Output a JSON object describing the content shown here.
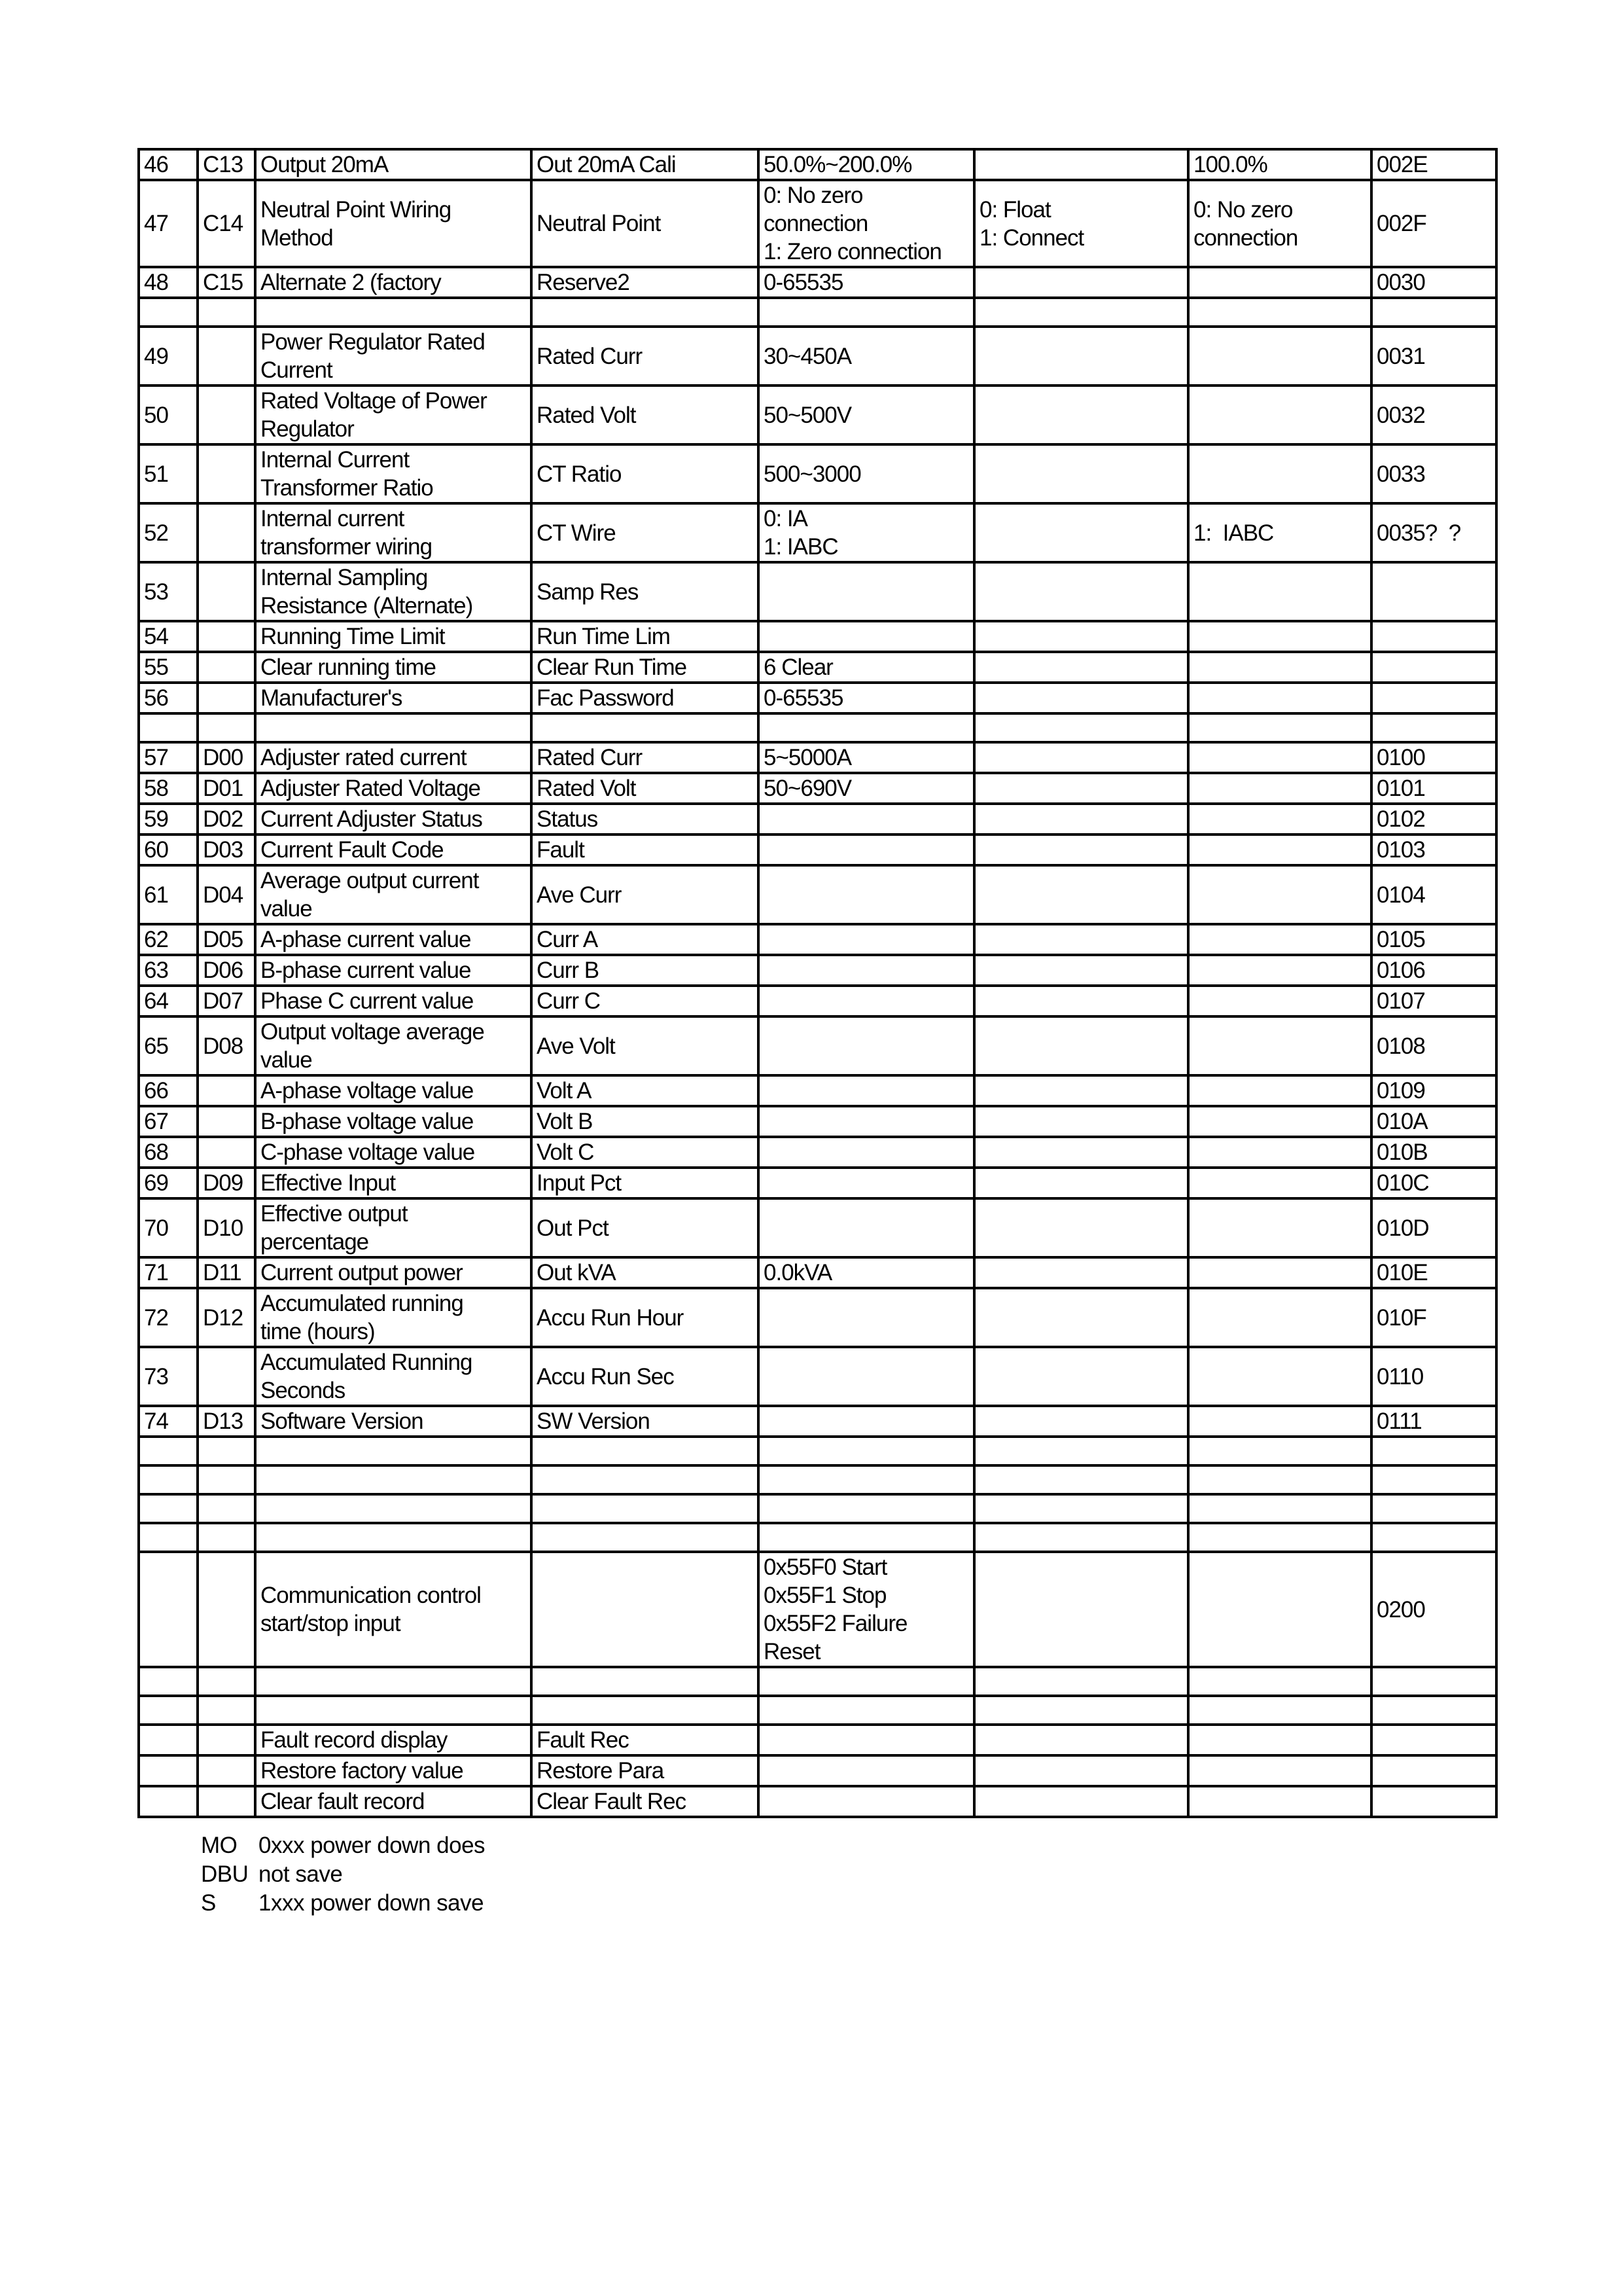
{
  "rows": [
    [
      "46",
      "C13",
      "Output 20mA",
      "Out 20mA Cali",
      "50.0%~200.0%",
      "",
      "100.0%",
      "002E"
    ],
    [
      "47",
      "C14",
      "Neutral Point Wiring\nMethod",
      "Neutral Point",
      "0: No zero\nconnection\n1: Zero connection",
      "0: Float\n1: Connect",
      "0: No zero\nconnection",
      "002F"
    ],
    [
      "48",
      "C15",
      "Alternate 2 (factory",
      "Reserve2",
      "0-65535",
      "",
      "",
      "0030"
    ],
    [
      "",
      "",
      "",
      "",
      "",
      "",
      "",
      ""
    ],
    [
      "49",
      "",
      "Power Regulator Rated\nCurrent",
      "Rated Curr",
      "30~450A",
      "",
      "",
      "0031"
    ],
    [
      "50",
      "",
      "Rated Voltage of Power\nRegulator",
      "Rated Volt",
      "50~500V",
      "",
      "",
      "0032"
    ],
    [
      "51",
      "",
      "Internal Current\nTransformer Ratio",
      "CT Ratio",
      "500~3000",
      "",
      "",
      "0033"
    ],
    [
      "52",
      "",
      "Internal current\ntransformer wiring",
      "CT Wire",
      "0: IA\n1: IABC",
      "",
      "1:  IABC",
      "0035?  ?"
    ],
    [
      "53",
      "",
      "Internal Sampling\nResistance (Alternate)",
      "Samp Res",
      "",
      "",
      "",
      ""
    ],
    [
      "54",
      "",
      "Running Time Limit",
      "Run Time Lim",
      "",
      "",
      "",
      ""
    ],
    [
      "55",
      "",
      "Clear running time",
      "Clear Run Time",
      "6 Clear",
      "",
      "",
      ""
    ],
    [
      "56",
      "",
      "Manufacturer's",
      "Fac Password",
      "0-65535",
      "",
      "",
      ""
    ],
    [
      "",
      "",
      "",
      "",
      "",
      "",
      "",
      ""
    ],
    [
      "57",
      "D00",
      "Adjuster rated current",
      "Rated Curr",
      "5~5000A",
      "",
      "",
      "0100"
    ],
    [
      "58",
      "D01",
      "Adjuster Rated Voltage",
      "Rated Volt",
      "50~690V",
      "",
      "",
      "0101"
    ],
    [
      "59",
      "D02",
      "Current Adjuster Status",
      "Status",
      "",
      "",
      "",
      "0102"
    ],
    [
      "60",
      "D03",
      "Current Fault Code",
      "Fault",
      "",
      "",
      "",
      "0103"
    ],
    [
      "61",
      "D04",
      "Average output current\nvalue",
      "Ave Curr",
      "",
      "",
      "",
      "0104"
    ],
    [
      "62",
      "D05",
      "A-phase current value",
      "Curr A",
      "",
      "",
      "",
      "0105"
    ],
    [
      "63",
      "D06",
      "B-phase current value",
      "Curr B",
      "",
      "",
      "",
      "0106"
    ],
    [
      "64",
      "D07",
      "Phase C current value",
      "Curr C",
      "",
      "",
      "",
      "0107"
    ],
    [
      "65",
      "D08",
      "Output voltage average\nvalue",
      "Ave Volt",
      "",
      "",
      "",
      "0108"
    ],
    [
      "66",
      "",
      "A-phase voltage value",
      "Volt A",
      "",
      "",
      "",
      "0109"
    ],
    [
      "67",
      "",
      "B-phase voltage value",
      "Volt B",
      "",
      "",
      "",
      "010A"
    ],
    [
      "68",
      "",
      "C-phase voltage value",
      "Volt C",
      "",
      "",
      "",
      "010B"
    ],
    [
      "69",
      "D09",
      "Effective Input",
      "Input Pct",
      "",
      "",
      "",
      "010C"
    ],
    [
      "70",
      "D10",
      "Effective output\npercentage",
      "Out Pct",
      "",
      "",
      "",
      "010D"
    ],
    [
      "71",
      "D11",
      "Current output power",
      "Out kVA",
      "0.0kVA",
      "",
      "",
      "010E"
    ],
    [
      "72",
      "D12",
      "Accumulated running\ntime (hours)",
      "Accu Run Hour",
      "",
      "",
      "",
      "010F"
    ],
    [
      "73",
      "",
      "Accumulated Running\nSeconds",
      "Accu Run Sec",
      "",
      "",
      "",
      "0110"
    ],
    [
      "74",
      "D13",
      "Software Version",
      "SW Version",
      "",
      "",
      "",
      "0111"
    ],
    [
      "",
      "",
      "",
      "",
      "",
      "",
      "",
      ""
    ],
    [
      "",
      "",
      "",
      "",
      "",
      "",
      "",
      ""
    ],
    [
      "",
      "",
      "",
      "",
      "",
      "",
      "",
      ""
    ],
    [
      "",
      "",
      "",
      "",
      "",
      "",
      "",
      ""
    ],
    [
      "",
      "",
      "Communication control\nstart/stop input",
      "",
      "0x55F0 Start\n0x55F1 Stop\n0x55F2 Failure\nReset",
      "",
      "",
      "0200"
    ],
    [
      "",
      "",
      "",
      "",
      "",
      "",
      "",
      ""
    ],
    [
      "",
      "",
      "",
      "",
      "",
      "",
      "",
      ""
    ],
    [
      "",
      "",
      "Fault record display",
      "Fault Rec",
      "",
      "",
      "",
      ""
    ],
    [
      "",
      "",
      "Restore factory value",
      "Restore Para",
      "",
      "",
      "",
      ""
    ],
    [
      "",
      "",
      "Clear fault record",
      "Clear Fault Rec",
      "",
      "",
      "",
      ""
    ]
  ],
  "notes": [
    {
      "key": "MO",
      "text": "0xxx power down does"
    },
    {
      "key": "DBU",
      "text": "not save"
    },
    {
      "key": "S",
      "text": "1xxx power down save"
    }
  ]
}
